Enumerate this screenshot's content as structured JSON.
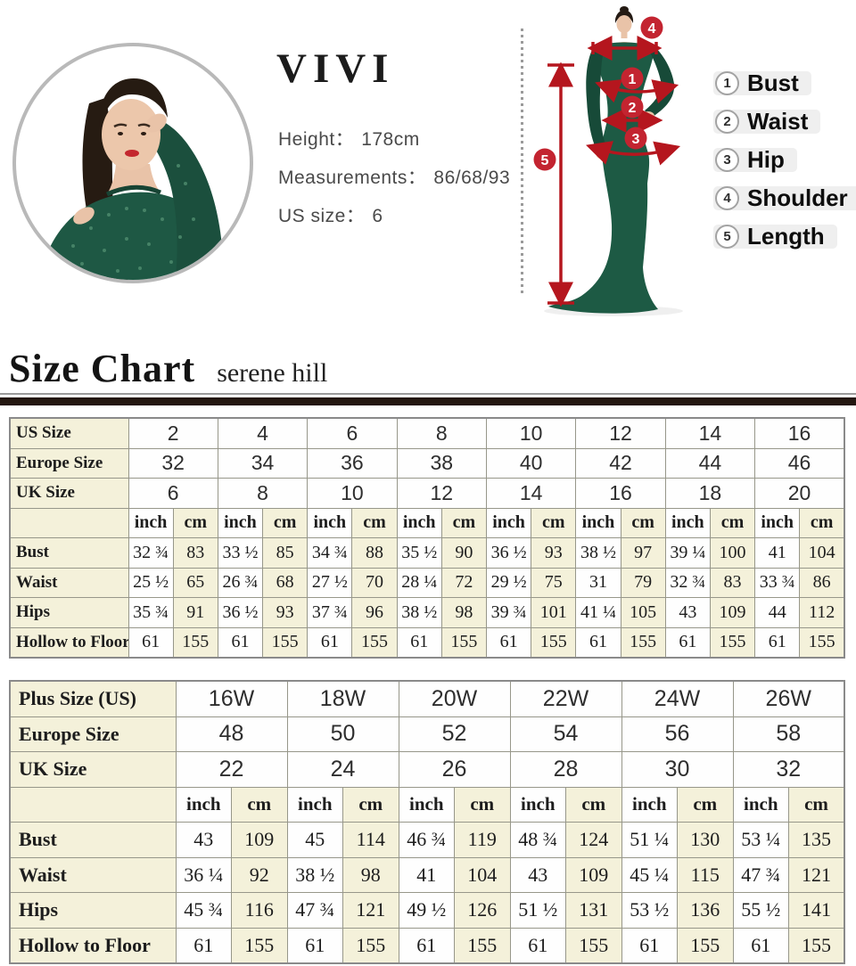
{
  "model_info": {
    "brand": "VIVI",
    "rows": [
      {
        "label": "Height：",
        "value": "178cm"
      },
      {
        "label": "Measurements：",
        "value": "86/68/93"
      },
      {
        "label": "US size：",
        "value": "6"
      }
    ]
  },
  "diagram": {
    "markers": [
      "1",
      "2",
      "3",
      "4",
      "5"
    ]
  },
  "legend": {
    "items": [
      {
        "num": "1",
        "label": "Bust"
      },
      {
        "num": "2",
        "label": "Waist"
      },
      {
        "num": "3",
        "label": "Hip"
      },
      {
        "num": "4",
        "label": "Shoulder"
      },
      {
        "num": "5",
        "label": "Length"
      }
    ]
  },
  "size_chart": {
    "title": "Size Chart",
    "subtitle": "serene hill"
  },
  "table1": {
    "size_rows": [
      {
        "label": "US Size",
        "values": [
          "2",
          "4",
          "6",
          "8",
          "10",
          "12",
          "14",
          "16"
        ]
      },
      {
        "label": "Europe Size",
        "values": [
          "32",
          "34",
          "36",
          "38",
          "40",
          "42",
          "44",
          "46"
        ]
      },
      {
        "label": "UK Size",
        "values": [
          "6",
          "8",
          "10",
          "12",
          "14",
          "16",
          "18",
          "20"
        ]
      }
    ],
    "unit_headers": [
      "inch",
      "cm"
    ],
    "measure_rows": [
      {
        "label": "Bust",
        "pairs": [
          [
            "32 ¾",
            "83"
          ],
          [
            "33 ½",
            "85"
          ],
          [
            "34 ¾",
            "88"
          ],
          [
            "35 ½",
            "90"
          ],
          [
            "36 ½",
            "93"
          ],
          [
            "38 ½",
            "97"
          ],
          [
            "39 ¼",
            "100"
          ],
          [
            "41",
            "104"
          ]
        ]
      },
      {
        "label": "Waist",
        "pairs": [
          [
            "25 ½",
            "65"
          ],
          [
            "26 ¾",
            "68"
          ],
          [
            "27 ½",
            "70"
          ],
          [
            "28 ¼",
            "72"
          ],
          [
            "29 ½",
            "75"
          ],
          [
            "31",
            "79"
          ],
          [
            "32 ¾",
            "83"
          ],
          [
            "33 ¾",
            "86"
          ]
        ]
      },
      {
        "label": "Hips",
        "pairs": [
          [
            "35 ¾",
            "91"
          ],
          [
            "36 ½",
            "93"
          ],
          [
            "37 ¾",
            "96"
          ],
          [
            "38 ½",
            "98"
          ],
          [
            "39 ¾",
            "101"
          ],
          [
            "41 ¼",
            "105"
          ],
          [
            "43",
            "109"
          ],
          [
            "44",
            "112"
          ]
        ]
      },
      {
        "label": "Hollow to Floor",
        "pairs": [
          [
            "61",
            "155"
          ],
          [
            "61",
            "155"
          ],
          [
            "61",
            "155"
          ],
          [
            "61",
            "155"
          ],
          [
            "61",
            "155"
          ],
          [
            "61",
            "155"
          ],
          [
            "61",
            "155"
          ],
          [
            "61",
            "155"
          ]
        ]
      }
    ]
  },
  "table2": {
    "size_rows": [
      {
        "label": "Plus Size (US)",
        "values": [
          "16W",
          "18W",
          "20W",
          "22W",
          "24W",
          "26W"
        ]
      },
      {
        "label": "Europe Size",
        "values": [
          "48",
          "50",
          "52",
          "54",
          "56",
          "58"
        ]
      },
      {
        "label": "UK Size",
        "values": [
          "22",
          "24",
          "26",
          "28",
          "30",
          "32"
        ]
      }
    ],
    "unit_headers": [
      "inch",
      "cm"
    ],
    "measure_rows": [
      {
        "label": "Bust",
        "pairs": [
          [
            "43",
            "109"
          ],
          [
            "45",
            "114"
          ],
          [
            "46 ¾",
            "119"
          ],
          [
            "48 ¾",
            "124"
          ],
          [
            "51 ¼",
            "130"
          ],
          [
            "53 ¼",
            "135"
          ]
        ]
      },
      {
        "label": "Waist",
        "pairs": [
          [
            "36 ¼",
            "92"
          ],
          [
            "38 ½",
            "98"
          ],
          [
            "41",
            "104"
          ],
          [
            "43",
            "109"
          ],
          [
            "45 ¼",
            "115"
          ],
          [
            "47 ¾",
            "121"
          ]
        ]
      },
      {
        "label": "Hips",
        "pairs": [
          [
            "45 ¾",
            "116"
          ],
          [
            "47 ¾",
            "121"
          ],
          [
            "49 ½",
            "126"
          ],
          [
            "51 ½",
            "131"
          ],
          [
            "53 ½",
            "136"
          ],
          [
            "55 ½",
            "141"
          ]
        ]
      },
      {
        "label": "Hollow to Floor",
        "pairs": [
          [
            "61",
            "155"
          ],
          [
            "61",
            "155"
          ],
          [
            "61",
            "155"
          ],
          [
            "61",
            "155"
          ],
          [
            "61",
            "155"
          ],
          [
            "61",
            "155"
          ]
        ]
      }
    ]
  },
  "colors": {
    "accent_red": "#c32430",
    "dress_green": "#1d5a44",
    "table_cream": "#f4f1da",
    "divider_brown": "#241811",
    "circle_border_gray": "#b9b9b9"
  }
}
